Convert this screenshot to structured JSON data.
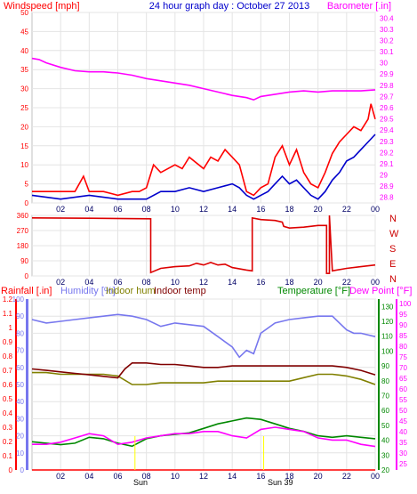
{
  "header": {
    "left": "Windspeed [mph]",
    "center": "24 hour graph day : October 27 2013",
    "right": "Barometer [.in]"
  },
  "direction_labels": [
    "N",
    "W",
    "S",
    "E",
    "N"
  ],
  "bottom_header": {
    "rainfall": "Rainfall [.in]",
    "humidity": "Humidity [%]",
    "indoor_hum": "Indoor hum",
    "indoor_temp": "Indoor temp",
    "temperature": "Temperature [°F]",
    "dewpoint": "Dew Point [°F]"
  },
  "annotations": {
    "sunrise": "Sun",
    "sunset": "Sun 39"
  },
  "colors": {
    "frame": "#c0c0c0",
    "wind": "#ff0000",
    "wind_avg": "#0000cc",
    "barometer": "#ff00ff",
    "direction": "#dd0000",
    "humidity": "#7777ee",
    "indoor_hum": "#808000",
    "indoor_temp": "#800000",
    "temperature": "#008800",
    "dewpoint": "#ff00ff",
    "rain": "#ff0000",
    "sun": "#ffff00"
  },
  "chart_data": [
    {
      "type": "line",
      "title": "24 hour graph day : October 27 2013",
      "xlabel": "",
      "x_ticks": [
        "02",
        "04",
        "06",
        "08",
        "10",
        "12",
        "14",
        "16",
        "18",
        "20",
        "22",
        "00"
      ],
      "y_left": {
        "label": "Windspeed [mph]",
        "ticks": [
          "0",
          "5",
          "10",
          "15",
          "20",
          "25",
          "30",
          "35",
          "40",
          "45",
          "50"
        ],
        "lim": [
          0,
          50
        ]
      },
      "y_right": {
        "label": "Barometer [.in]",
        "ticks": [
          "28.8",
          "28.9",
          "29",
          "29.1",
          "29.2",
          "29.3",
          "29.4",
          "29.5",
          "29.6",
          "29.7",
          "29.8",
          "29.9",
          "30",
          "30.1",
          "30.2",
          "30.3",
          "30.4"
        ],
        "lim": [
          28.75,
          30.45
        ]
      },
      "series": [
        {
          "name": "Windspeed [mph]",
          "axis": "left",
          "color": "#ff0000",
          "x": [
            0,
            1,
            1.5,
            2,
            3,
            3.6,
            4,
            5,
            6,
            7,
            7.5,
            8,
            8.5,
            9,
            10,
            10.5,
            11,
            12,
            12.5,
            13,
            13.5,
            14,
            14.5,
            15,
            15.5,
            16,
            16.5,
            17,
            17.5,
            18,
            18.5,
            19,
            19.5,
            20,
            20.5,
            21,
            21.5,
            22,
            22.5,
            23,
            23.5,
            23.7,
            24
          ],
          "y": [
            3,
            3,
            3,
            3,
            3,
            7,
            3,
            3,
            2,
            3,
            3,
            4,
            10,
            8,
            10,
            9,
            12,
            9,
            12,
            11,
            14,
            12,
            10,
            3,
            2,
            4,
            5,
            12,
            15,
            10,
            14,
            8,
            5,
            4,
            8,
            13,
            16,
            18,
            20,
            19,
            22,
            26,
            22
          ]
        },
        {
          "name": "Average wind",
          "axis": "left",
          "color": "#0000cc",
          "x": [
            0,
            2,
            4,
            6,
            8,
            9,
            10,
            11,
            12,
            13,
            14,
            14.5,
            15,
            15.5,
            16,
            16.5,
            17,
            17.5,
            18,
            18.5,
            19,
            19.5,
            20,
            20.5,
            21,
            21.5,
            22,
            22.5,
            23,
            23.5,
            24
          ],
          "y": [
            2,
            1,
            2,
            1,
            1,
            3,
            3,
            4,
            3,
            4,
            5,
            4,
            2,
            1,
            2,
            3,
            5,
            7,
            5,
            6,
            4,
            2,
            1,
            3,
            6,
            8,
            11,
            12,
            14,
            16,
            18
          ]
        },
        {
          "name": "Barometer [.in]",
          "axis": "right",
          "color": "#ff00ff",
          "x": [
            0,
            0.5,
            1,
            2,
            3,
            4,
            5,
            6,
            7,
            8,
            9,
            10,
            11,
            12,
            13,
            14,
            15,
            15.5,
            16,
            17,
            18,
            19,
            20,
            21,
            22,
            23,
            24
          ],
          "y": [
            30.04,
            30.03,
            30.0,
            29.96,
            29.93,
            29.92,
            29.92,
            29.91,
            29.89,
            29.86,
            29.84,
            29.82,
            29.8,
            29.77,
            29.74,
            29.71,
            29.69,
            29.67,
            29.7,
            29.72,
            29.74,
            29.75,
            29.74,
            29.75,
            29.75,
            29.75,
            29.76
          ]
        }
      ]
    },
    {
      "type": "line",
      "title": "",
      "x_ticks": [
        "02",
        "04",
        "06",
        "08",
        "10",
        "12",
        "14",
        "16",
        "18",
        "20",
        "22",
        "00"
      ],
      "y_left": {
        "label": "",
        "ticks": [
          "0",
          "90",
          "180",
          "270",
          "360"
        ],
        "lim": [
          0,
          360
        ]
      },
      "series": [
        {
          "name": "Wind direction",
          "color": "#dd0000",
          "x": [
            0,
            4,
            8.3,
            8.3,
            9,
            10,
            11,
            11.5,
            12,
            12.5,
            13,
            13.5,
            14,
            15,
            15.4,
            15.4,
            16,
            17,
            17.5,
            17.6,
            18,
            19,
            20,
            20.6,
            20.6,
            20.8,
            20.8,
            21,
            22,
            23,
            24
          ],
          "y": [
            345,
            343,
            340,
            20,
            45,
            55,
            60,
            75,
            65,
            80,
            65,
            70,
            50,
            35,
            30,
            345,
            335,
            330,
            320,
            295,
            285,
            290,
            300,
            300,
            15,
            15,
            360,
            30,
            45,
            55,
            65
          ]
        }
      ]
    },
    {
      "type": "line",
      "title": "",
      "x_ticks": [
        "02",
        "04",
        "06",
        "08",
        "10",
        "12",
        "14",
        "16",
        "18",
        "20",
        "22",
        "00"
      ],
      "y_rain": {
        "label": "Rainfall [.in]",
        "ticks": [
          "0",
          "0.1",
          "0.2",
          "0.3",
          "0.4",
          "0.5",
          "0.6",
          "0.7",
          "0.8",
          "0.9",
          "1",
          "1.1",
          "1.2"
        ],
        "lim": [
          0,
          1.2
        ]
      },
      "y_humidity": {
        "label": "Humidity [%]",
        "ticks": [
          "0",
          "10",
          "20",
          "30",
          "40",
          "50",
          "60",
          "70",
          "80",
          "90",
          "100"
        ],
        "lim": [
          0,
          100
        ]
      },
      "y_temperature": {
        "label": "Temperature [°F]",
        "ticks": [
          "20",
          "30",
          "40",
          "50",
          "60",
          "70",
          "80",
          "90",
          "100",
          "110",
          "120",
          "130"
        ],
        "lim": [
          20,
          135
        ]
      },
      "y_dewpoint": {
        "label": "Dew Point [°F]",
        "ticks": [
          "25",
          "30",
          "35",
          "40",
          "45",
          "50",
          "55",
          "60",
          "65",
          "70",
          "75",
          "80",
          "85",
          "90",
          "95",
          "100"
        ],
        "lim": [
          22,
          102
        ]
      },
      "series": [
        {
          "name": "Humidity [%]",
          "axis": "humidity",
          "color": "#7777ee",
          "x": [
            0,
            1,
            2,
            3,
            4,
            5,
            6,
            7,
            8,
            9,
            10,
            11,
            12,
            13,
            14,
            14.5,
            15,
            15.5,
            16,
            17,
            18,
            19,
            20,
            21,
            21.5,
            22,
            22.5,
            23,
            24
          ],
          "y": [
            88,
            86,
            87,
            88,
            89,
            90,
            91,
            90,
            88,
            84,
            86,
            85,
            84,
            78,
            72,
            66,
            70,
            68,
            80,
            86,
            88,
            89,
            90,
            90,
            86,
            82,
            80,
            80,
            78
          ]
        },
        {
          "name": "Indoor hum",
          "axis": "humidity",
          "color": "#808000",
          "x": [
            0,
            1,
            2,
            3,
            4,
            5,
            6,
            7,
            8,
            9,
            10,
            11,
            12,
            13,
            14,
            15,
            16,
            17,
            18,
            19,
            20,
            21,
            22,
            23,
            24
          ],
          "y": [
            57,
            57,
            56,
            56,
            56,
            56,
            55,
            50,
            50,
            51,
            51,
            51,
            51,
            52,
            52,
            52,
            52,
            52,
            52,
            54,
            56,
            56,
            55,
            53,
            50
          ]
        },
        {
          "name": "Indoor temp",
          "axis": "temperature",
          "color": "#800000",
          "x": [
            0,
            1,
            2,
            3,
            4,
            5,
            6,
            6.5,
            7,
            8,
            9,
            10,
            11,
            12,
            13,
            14,
            15,
            16,
            17,
            18,
            19,
            20,
            21,
            22,
            23,
            24
          ],
          "y": [
            88,
            87,
            86,
            85,
            84,
            83,
            82,
            88,
            92,
            92,
            91,
            91,
            90,
            89,
            89,
            90,
            90,
            90,
            90,
            90,
            90,
            90,
            90,
            89,
            87,
            84
          ]
        },
        {
          "name": "Temperature [°F]",
          "axis": "temperature",
          "color": "#008800",
          "x": [
            0,
            1,
            2,
            3,
            4,
            5,
            6,
            7,
            8,
            9,
            10,
            11,
            12,
            13,
            14,
            15,
            16,
            17,
            18,
            19,
            20,
            21,
            22,
            23,
            24
          ],
          "y": [
            39,
            38,
            37,
            38,
            42,
            41,
            38,
            36,
            41,
            43,
            44,
            45,
            48,
            51,
            53,
            55,
            54,
            51,
            48,
            46,
            43,
            42,
            43,
            42,
            41
          ]
        },
        {
          "name": "Dew Point [°F]",
          "axis": "dewpoint",
          "color": "#ff00ff",
          "x": [
            0,
            1,
            2,
            3,
            4,
            5,
            6,
            7,
            8,
            9,
            10,
            11,
            12,
            13,
            14,
            15,
            16,
            17,
            18,
            19,
            20,
            21,
            22,
            23,
            24
          ],
          "y": [
            34,
            34,
            35,
            37,
            39,
            38,
            34,
            35,
            37,
            38,
            39,
            39,
            40,
            40,
            38,
            37,
            41,
            42,
            41,
            40,
            37,
            36,
            36,
            34,
            33
          ]
        },
        {
          "name": "Rainfall [.in]",
          "axis": "rain",
          "color": "#ff0000",
          "x": [
            0,
            24
          ],
          "y": [
            0,
            0
          ]
        }
      ]
    }
  ]
}
